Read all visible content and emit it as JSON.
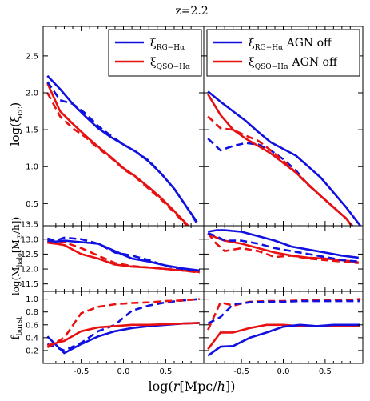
{
  "title": "z=2.2",
  "xlabel": "log(r[Mpc/h])",
  "colors": {
    "blue": "#1010e0",
    "red": "#e81010"
  },
  "chart_data": {
    "type": "line",
    "xlim": [
      -0.95,
      0.95
    ],
    "xticks": [
      "-0.5",
      "0.0",
      "0.5"
    ],
    "rows": [
      {
        "ylabel": "log(ξcc)",
        "ylim": [
          0.2,
          2.9
        ],
        "yticks": [
          "0.5",
          "1.0",
          "1.5",
          "2.0",
          "2.5"
        ]
      },
      {
        "ylabel": "log(Mhalo[M☉/h])",
        "ylim": [
          11.25,
          13.45
        ],
        "yticks": [
          "11.5",
          "12.0",
          "12.5",
          "13.0",
          "13.5"
        ]
      },
      {
        "ylabel": "fburst",
        "ylim": [
          0.0,
          1.12
        ],
        "yticks": [
          "0.2",
          "0.4",
          "0.6",
          "0.8",
          "1.0"
        ]
      }
    ],
    "panels": [
      {
        "row": 0,
        "col": 0,
        "legend": {
          "location": "top-right",
          "entries": [
            {
              "label": "ξRG−Hα",
              "color": "#1010e0"
            },
            {
              "label": "ξQSO−Hα",
              "color": "#e81010"
            }
          ]
        },
        "series": [
          {
            "color": "#e81010",
            "dash": true,
            "x": [
              -0.9,
              -0.75,
              -0.6,
              -0.45,
              -0.3,
              -0.15,
              0.0,
              0.15,
              0.3,
              0.45,
              0.6,
              0.75,
              0.82
            ],
            "y": [
              2.0,
              1.68,
              1.52,
              1.4,
              1.25,
              1.12,
              0.97,
              0.85,
              0.7,
              0.55,
              0.38,
              0.2,
              0.12
            ]
          },
          {
            "color": "#e81010",
            "dash": false,
            "x": [
              -0.9,
              -0.75,
              -0.6,
              -0.45,
              -0.3,
              -0.15,
              0.0,
              0.15,
              0.3,
              0.45,
              0.6,
              0.75,
              0.82
            ],
            "y": [
              2.13,
              1.75,
              1.58,
              1.42,
              1.27,
              1.13,
              0.98,
              0.86,
              0.72,
              0.57,
              0.4,
              0.22,
              0.12
            ]
          },
          {
            "color": "#1010e0",
            "dash": true,
            "x": [
              -0.9,
              -0.75,
              -0.6,
              -0.45,
              -0.3,
              -0.15,
              0.0,
              0.15,
              0.3,
              0.45,
              0.6,
              0.75,
              0.86
            ],
            "y": [
              2.15,
              1.9,
              1.85,
              1.72,
              1.55,
              1.42,
              1.3,
              1.2,
              1.08,
              0.9,
              0.7,
              0.45,
              0.25
            ]
          },
          {
            "color": "#1010e0",
            "dash": false,
            "x": [
              -0.9,
              -0.75,
              -0.6,
              -0.45,
              -0.3,
              -0.15,
              0.0,
              0.15,
              0.3,
              0.45,
              0.6,
              0.75,
              0.87
            ],
            "y": [
              2.23,
              2.05,
              1.85,
              1.68,
              1.52,
              1.4,
              1.3,
              1.2,
              1.07,
              0.9,
              0.7,
              0.45,
              0.25
            ]
          }
        ]
      },
      {
        "row": 0,
        "col": 1,
        "legend": {
          "location": "top-right",
          "entries": [
            {
              "label": "ξRG−Hα AGN off",
              "color": "#1010e0"
            },
            {
              "label": "ξQSO−Hα AGN off",
              "color": "#e81010"
            }
          ]
        },
        "series": [
          {
            "color": "#1010e0",
            "dash": true,
            "x": [
              -0.9,
              -0.75,
              -0.6,
              -0.45,
              -0.3,
              -0.15,
              0.0,
              0.15,
              0.3,
              0.45,
              0.6,
              0.75,
              0.86
            ],
            "y": [
              1.38,
              1.22,
              1.28,
              1.32,
              1.3,
              1.22,
              1.1,
              0.95,
              0.75,
              0.6,
              0.45,
              0.3,
              0.15
            ]
          },
          {
            "color": "#e81010",
            "dash": true,
            "x": [
              -0.9,
              -0.75,
              -0.6,
              -0.45,
              -0.3,
              -0.15,
              0.0,
              0.15,
              0.3,
              0.45,
              0.6,
              0.75,
              0.85
            ],
            "y": [
              1.68,
              1.52,
              1.5,
              1.42,
              1.35,
              1.22,
              1.08,
              0.92,
              0.75,
              0.6,
              0.45,
              0.3,
              0.15
            ]
          },
          {
            "color": "#e81010",
            "dash": false,
            "x": [
              -0.9,
              -0.75,
              -0.6,
              -0.45,
              -0.3,
              -0.15,
              0.0,
              0.15,
              0.3,
              0.45,
              0.6,
              0.75,
              0.85
            ],
            "y": [
              1.98,
              1.7,
              1.5,
              1.38,
              1.28,
              1.18,
              1.05,
              0.92,
              0.76,
              0.6,
              0.45,
              0.3,
              0.15
            ]
          },
          {
            "color": "#1010e0",
            "dash": false,
            "x": [
              -0.9,
              -0.75,
              -0.6,
              -0.45,
              -0.3,
              -0.15,
              0.0,
              0.15,
              0.3,
              0.45,
              0.6,
              0.75,
              0.92
            ],
            "y": [
              2.02,
              1.88,
              1.75,
              1.62,
              1.47,
              1.33,
              1.24,
              1.15,
              1.0,
              0.85,
              0.65,
              0.45,
              0.2
            ]
          }
        ]
      },
      {
        "row": 1,
        "col": 0,
        "series": [
          {
            "color": "#e81010",
            "dash": true,
            "x": [
              -0.9,
              -0.8,
              -0.7,
              -0.5,
              -0.3,
              -0.1,
              0.1,
              0.3,
              0.5,
              0.7,
              0.9
            ],
            "y": [
              12.9,
              12.95,
              12.9,
              12.7,
              12.45,
              12.2,
              12.1,
              12.05,
              12.0,
              11.95,
              11.88
            ]
          },
          {
            "color": "#e81010",
            "dash": false,
            "x": [
              -0.9,
              -0.8,
              -0.7,
              -0.5,
              -0.3,
              -0.1,
              0.1,
              0.3,
              0.5,
              0.7,
              0.9
            ],
            "y": [
              12.88,
              12.85,
              12.8,
              12.5,
              12.35,
              12.15,
              12.08,
              12.05,
              12.0,
              11.95,
              11.9
            ]
          },
          {
            "color": "#1010e0",
            "dash": true,
            "x": [
              -0.9,
              -0.8,
              -0.7,
              -0.5,
              -0.3,
              -0.1,
              0.1,
              0.3,
              0.5,
              0.7,
              0.9
            ],
            "y": [
              13.02,
              12.95,
              13.05,
              13.0,
              12.85,
              12.55,
              12.45,
              12.3,
              12.1,
              12.0,
              11.95
            ]
          },
          {
            "color": "#1010e0",
            "dash": false,
            "x": [
              -0.9,
              -0.8,
              -0.7,
              -0.5,
              -0.3,
              -0.1,
              0.1,
              0.3,
              0.5,
              0.7,
              0.9
            ],
            "y": [
              12.95,
              12.92,
              12.95,
              12.9,
              12.85,
              12.6,
              12.35,
              12.25,
              12.12,
              12.02,
              11.95
            ]
          }
        ]
      },
      {
        "row": 1,
        "col": 1,
        "series": [
          {
            "color": "#e81010",
            "dash": true,
            "x": [
              -0.9,
              -0.8,
              -0.7,
              -0.5,
              -0.3,
              -0.1,
              0.1,
              0.3,
              0.5,
              0.7,
              0.9
            ],
            "y": [
              13.2,
              12.85,
              12.6,
              12.7,
              12.6,
              12.4,
              12.45,
              12.35,
              12.3,
              12.25,
              12.2
            ]
          },
          {
            "color": "#e81010",
            "dash": false,
            "x": [
              -0.9,
              -0.8,
              -0.7,
              -0.5,
              -0.3,
              -0.1,
              0.1,
              0.3,
              0.5,
              0.7,
              0.9
            ],
            "y": [
              13.2,
              13.05,
              12.95,
              12.85,
              12.7,
              12.55,
              12.45,
              12.38,
              12.35,
              12.3,
              12.22
            ]
          },
          {
            "color": "#1010e0",
            "dash": true,
            "x": [
              -0.9,
              -0.8,
              -0.7,
              -0.5,
              -0.3,
              -0.1,
              0.1,
              0.3,
              0.5,
              0.7,
              0.9
            ],
            "y": [
              13.2,
              13.1,
              12.95,
              12.95,
              12.85,
              12.7,
              12.6,
              12.5,
              12.4,
              12.3,
              12.25
            ]
          },
          {
            "color": "#1010e0",
            "dash": false,
            "x": [
              -0.9,
              -0.8,
              -0.7,
              -0.5,
              -0.3,
              -0.1,
              0.1,
              0.3,
              0.5,
              0.7,
              0.9
            ],
            "y": [
              13.25,
              13.3,
              13.3,
              13.25,
              13.1,
              12.95,
              12.75,
              12.65,
              12.55,
              12.45,
              12.38
            ]
          }
        ]
      },
      {
        "row": 2,
        "col": 0,
        "series": [
          {
            "color": "#1010e0",
            "dash": true,
            "x": [
              -0.9,
              -0.7,
              -0.5,
              -0.3,
              -0.1,
              0.1,
              0.3,
              0.5,
              0.7,
              0.9
            ],
            "y": [
              0.3,
              0.2,
              0.32,
              0.5,
              0.6,
              0.82,
              0.9,
              0.95,
              0.98,
              1.0
            ]
          },
          {
            "color": "#1010e0",
            "dash": false,
            "x": [
              -0.9,
              -0.7,
              -0.5,
              -0.3,
              -0.1,
              0.1,
              0.3,
              0.5,
              0.7,
              0.9
            ],
            "y": [
              0.42,
              0.16,
              0.3,
              0.42,
              0.5,
              0.55,
              0.58,
              0.6,
              0.62,
              0.63
            ]
          },
          {
            "color": "#e81010",
            "dash": true,
            "x": [
              -0.9,
              -0.7,
              -0.5,
              -0.3,
              -0.1,
              0.1,
              0.3,
              0.5,
              0.7,
              0.9
            ],
            "y": [
              0.25,
              0.4,
              0.78,
              0.88,
              0.92,
              0.94,
              0.95,
              0.97,
              0.98,
              1.0
            ]
          },
          {
            "color": "#e81010",
            "dash": false,
            "x": [
              -0.9,
              -0.7,
              -0.5,
              -0.3,
              -0.1,
              0.1,
              0.3,
              0.5,
              0.7,
              0.9
            ],
            "y": [
              0.28,
              0.35,
              0.5,
              0.56,
              0.58,
              0.6,
              0.6,
              0.61,
              0.62,
              0.63
            ]
          }
        ]
      },
      {
        "row": 2,
        "col": 1,
        "series": [
          {
            "color": "#e81010",
            "dash": true,
            "x": [
              -0.9,
              -0.75,
              -0.6,
              -0.4,
              -0.2,
              0.0,
              0.2,
              0.4,
              0.6,
              0.8,
              0.92
            ],
            "y": [
              0.52,
              0.95,
              0.9,
              0.96,
              0.97,
              0.97,
              0.98,
              0.98,
              0.99,
              0.99,
              1.0
            ]
          },
          {
            "color": "#1010e0",
            "dash": true,
            "x": [
              -0.9,
              -0.75,
              -0.6,
              -0.4,
              -0.2,
              0.0,
              0.2,
              0.4,
              0.6,
              0.8,
              0.92
            ],
            "y": [
              0.62,
              0.72,
              0.92,
              0.95,
              0.96,
              0.96,
              0.97,
              0.97,
              0.97,
              0.97,
              0.97
            ]
          },
          {
            "color": "#e81010",
            "dash": false,
            "x": [
              -0.9,
              -0.75,
              -0.6,
              -0.4,
              -0.2,
              0.0,
              0.2,
              0.4,
              0.6,
              0.8,
              0.92
            ],
            "y": [
              0.22,
              0.48,
              0.48,
              0.55,
              0.6,
              0.6,
              0.58,
              0.58,
              0.58,
              0.58,
              0.58
            ]
          },
          {
            "color": "#1010e0",
            "dash": false,
            "x": [
              -0.9,
              -0.75,
              -0.6,
              -0.4,
              -0.2,
              0.0,
              0.2,
              0.4,
              0.6,
              0.8,
              0.92
            ],
            "y": [
              0.12,
              0.26,
              0.27,
              0.4,
              0.48,
              0.57,
              0.6,
              0.58,
              0.6,
              0.6,
              0.6
            ]
          }
        ]
      }
    ]
  }
}
